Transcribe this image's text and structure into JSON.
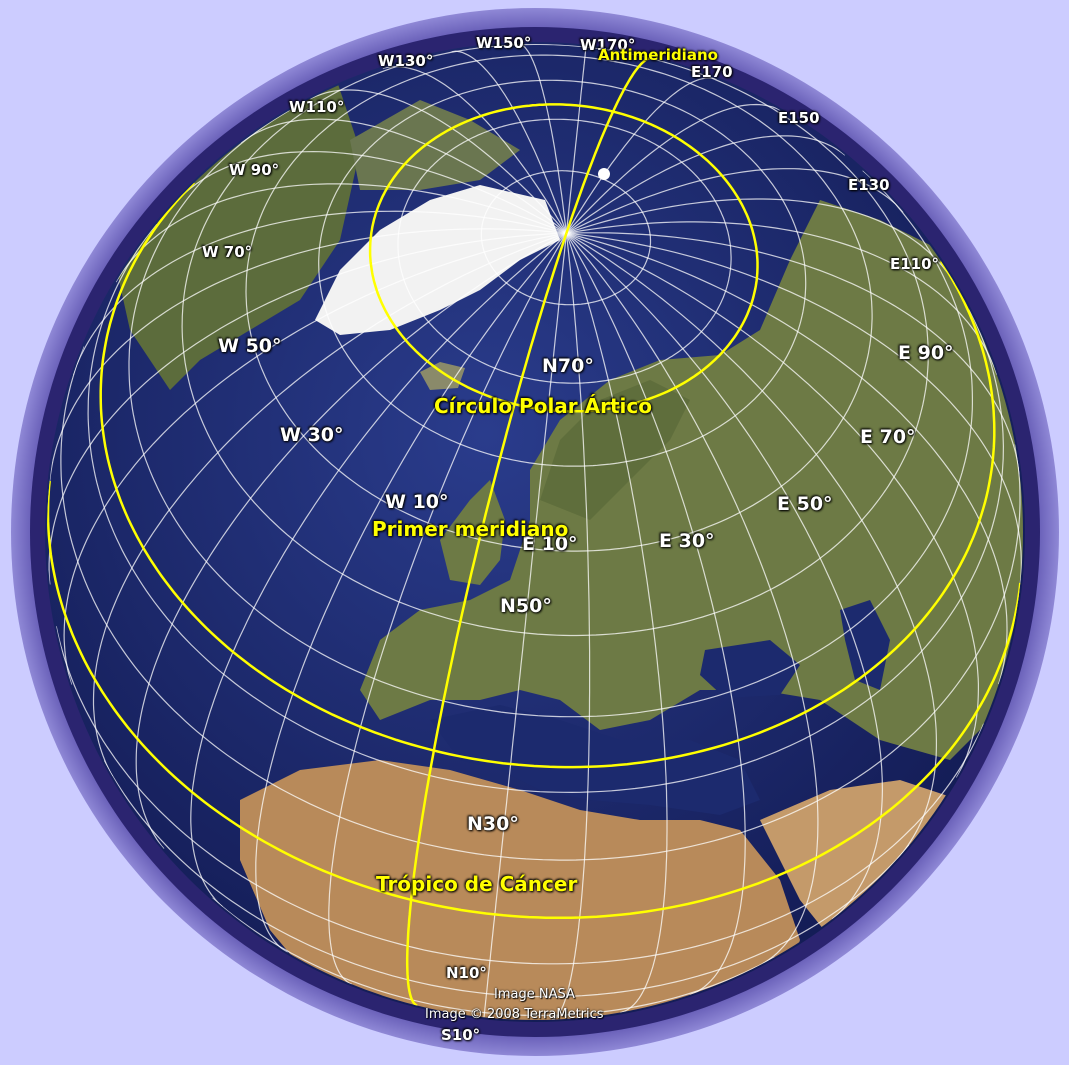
{
  "colors": {
    "background": "#ccccff",
    "ocean": "#1c2a6e",
    "land": "#6d7a45",
    "desert": "#b88a5a",
    "ice": "#f4f4f4",
    "grid": "#ffffff",
    "feature_lines": "#ffff00",
    "halo": "#3a2f86"
  },
  "meridian_labels": [
    "W150°",
    "W170°",
    "W130°",
    "W110°",
    "W 90°",
    "W 70°",
    "W 50°",
    "W 30°",
    "W 10°",
    "E170",
    "E150",
    "E130",
    "E110°",
    "E 90°",
    "E 70°",
    "E 50°",
    "E 30°",
    "E 10°"
  ],
  "parallel_labels": [
    "N70°",
    "N50°",
    "N30°",
    "N10°",
    "S10°"
  ],
  "feature_labels": {
    "antimeridian": "Antimeridiano",
    "arctic_circle": "Círculo Polar Ártico",
    "prime_meridian": "Primer meridiano",
    "tropic_of_cancer": "Trópico de Cáncer"
  },
  "credits": {
    "line1": "Image NASA",
    "line2": "Image © 2008 TerraMetrics"
  }
}
